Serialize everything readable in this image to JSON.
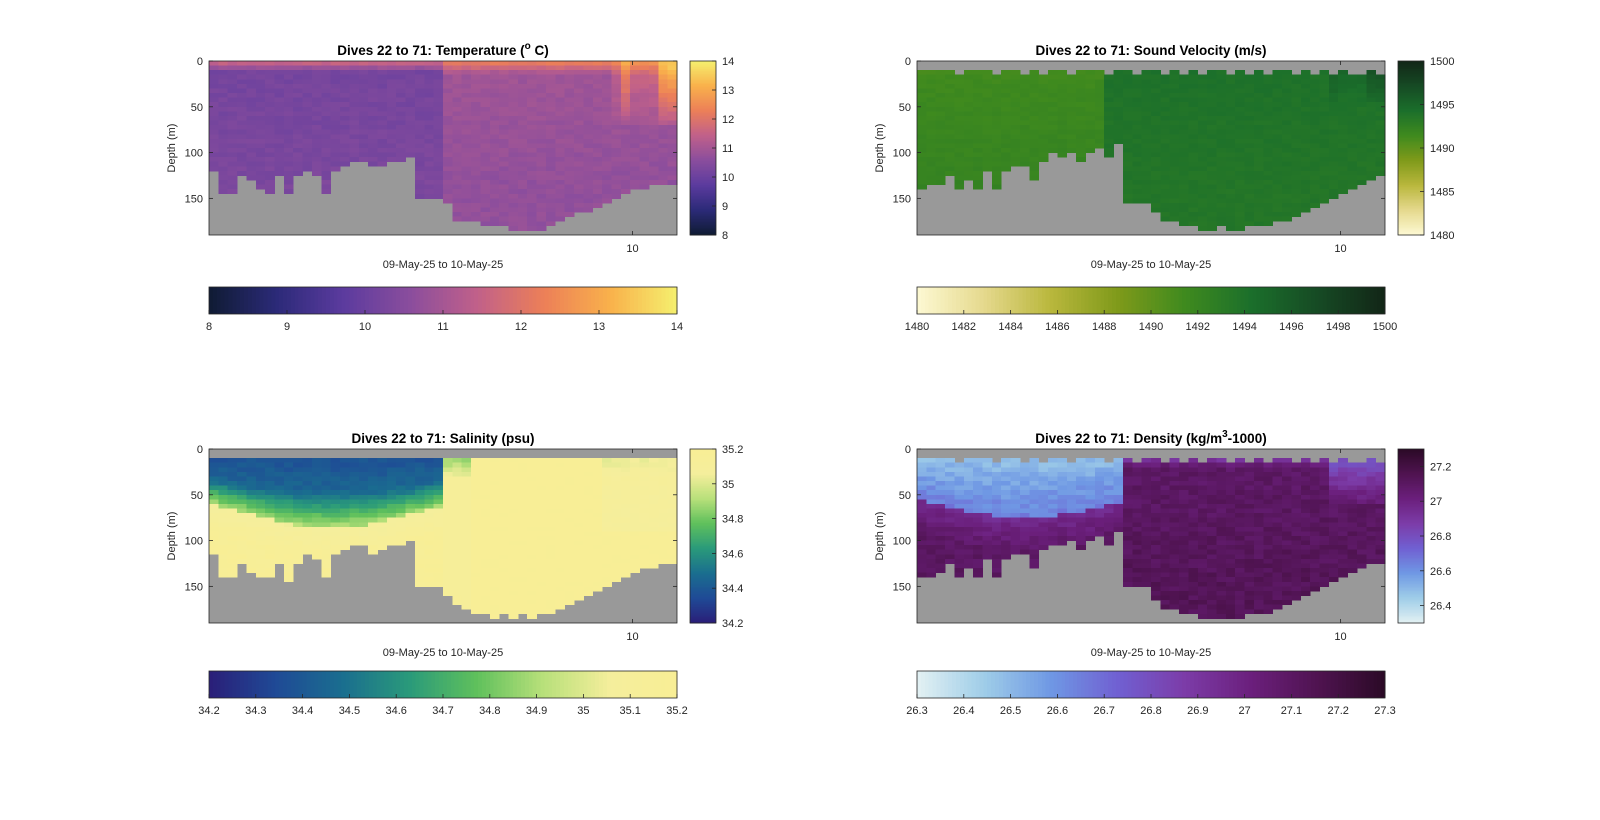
{
  "figure": {
    "panels": [
      {
        "id": "temperature",
        "title_prefix": "Dives 22 to 71: Temperature (",
        "title_sup": "o",
        "title_suffix": " C)",
        "ylabel": "Depth (m)",
        "xlabel": "09-May-25 to 10-May-25"
      },
      {
        "id": "sound-velocity",
        "title_prefix": "Dives 22 to 71: Sound Velocity (m/s)",
        "title_sup": "",
        "title_suffix": "",
        "ylabel": "Depth (m)",
        "xlabel": "09-May-25 to 10-May-25"
      },
      {
        "id": "salinity",
        "title_prefix": "Dives 22 to 71: Salinity (psu)",
        "title_sup": "",
        "title_suffix": "",
        "ylabel": "Depth (m)",
        "xlabel": "09-May-25 to 10-May-25"
      },
      {
        "id": "density",
        "title_prefix": "Dives 22 to 71: Density (kg/m",
        "title_sup": "3",
        "title_suffix": "-1000)",
        "ylabel": "Depth (m)",
        "xlabel": "09-May-25 to 10-May-25"
      }
    ]
  },
  "chart_data": [
    {
      "type": "heatmap",
      "title": "Dives 22 to 71: Temperature (o C)",
      "xlabel": "09-May-25 to 10-May-25",
      "ylabel": "Depth (m)",
      "x_ticks": [
        "10"
      ],
      "x_tick_fraction": 0.905,
      "y_ticks": [
        0,
        50,
        100,
        150
      ],
      "ylim": [
        190,
        0
      ],
      "n_dives": 50,
      "colormap": [
        "#0f1b33",
        "#2b2a78",
        "#5b3b9e",
        "#8a4d9d",
        "#c0608a",
        "#ec7f58",
        "#f9b14b",
        "#f5f06e"
      ],
      "no_data_color": "#999999",
      "colorbar_right": {
        "ticks": [
          8,
          9,
          10,
          11,
          12,
          13,
          14
        ],
        "clim": [
          8,
          14
        ]
      },
      "colorbar_bottom": {
        "ticks": [
          "8",
          "9",
          "10",
          "11",
          "12",
          "13",
          "14"
        ],
        "clim": [
          8,
          14
        ]
      },
      "max_depth": [
        120,
        145,
        145,
        125,
        130,
        140,
        145,
        125,
        145,
        125,
        120,
        125,
        145,
        120,
        115,
        110,
        110,
        115,
        115,
        110,
        110,
        105,
        150,
        150,
        150,
        155,
        175,
        175,
        175,
        180,
        180,
        180,
        185,
        185,
        185,
        185,
        180,
        175,
        170,
        165,
        165,
        160,
        155,
        150,
        145,
        140,
        140,
        135,
        135,
        135
      ],
      "surface_gap": [
        0,
        0,
        0,
        0,
        0,
        0,
        0,
        0,
        0,
        0,
        0,
        0,
        0,
        0,
        0,
        0,
        0,
        0,
        0,
        0,
        0,
        0,
        0,
        0,
        0,
        0,
        0,
        0,
        0,
        0,
        0,
        0,
        0,
        0,
        0,
        0,
        0,
        0,
        0,
        0,
        0,
        0,
        0,
        0,
        0,
        0,
        0,
        0,
        0,
        0
      ],
      "profile": {
        "type": "two_region",
        "split_dive": 25,
        "A": {
          "mixed": 10.2,
          "mld": 12,
          "deep": 10.3,
          "surface": 11.8
        },
        "B": {
          "mixed": 10.9,
          "mld": 15,
          "deep": 10.7,
          "surface": 12.4
        },
        "late": {
          "from_dive": 43,
          "surface": 13.6,
          "mld": 70,
          "mixed": 11.2
        },
        "noise": 0.12
      }
    },
    {
      "type": "heatmap",
      "title": "Dives 22 to 71: Sound Velocity (m/s)",
      "xlabel": "09-May-25 to 10-May-25",
      "ylabel": "Depth (m)",
      "x_ticks": [
        "10"
      ],
      "x_tick_fraction": 0.905,
      "y_ticks": [
        0,
        50,
        100,
        150
      ],
      "ylim": [
        190,
        0
      ],
      "n_dives": 50,
      "colormap": [
        "#fdf9d3",
        "#e5d98d",
        "#b9b73c",
        "#7f9a1a",
        "#3f8a1e",
        "#1b6f2b",
        "#164a24",
        "#122617"
      ],
      "no_data_color": "#999999",
      "colorbar_right": {
        "ticks": [
          1480,
          1485,
          1490,
          1495,
          1500
        ],
        "clim": [
          1480,
          1500
        ]
      },
      "colorbar_bottom": {
        "ticks": [
          "1480",
          "1482",
          "1484",
          "1486",
          "1488",
          "1490",
          "1492",
          "1494",
          "1496",
          "1498",
          "1500"
        ],
        "clim": [
          1480,
          1500
        ]
      },
      "max_depth": [
        140,
        135,
        135,
        125,
        140,
        130,
        140,
        120,
        140,
        120,
        115,
        115,
        130,
        110,
        100,
        105,
        100,
        110,
        100,
        95,
        105,
        90,
        155,
        155,
        155,
        165,
        175,
        175,
        180,
        180,
        185,
        185,
        180,
        185,
        185,
        180,
        180,
        180,
        175,
        175,
        170,
        165,
        160,
        155,
        150,
        145,
        140,
        135,
        130,
        125
      ],
      "surface_gap": [
        10,
        8,
        10,
        8,
        12,
        8,
        10,
        8,
        12,
        10,
        8,
        12,
        8,
        12,
        10,
        8,
        12,
        10,
        8,
        10,
        12,
        10,
        8,
        12,
        10,
        8,
        14,
        10,
        12,
        8,
        14,
        10,
        8,
        12,
        10,
        14,
        8,
        12,
        10,
        8,
        12,
        10,
        14,
        8,
        12,
        10,
        14,
        12,
        10,
        14
      ],
      "profile": {
        "type": "two_region",
        "split_dive": 20,
        "A": {
          "mixed": 1491.5,
          "mld": 20,
          "deep": 1492.2,
          "surface": 1490.8
        },
        "B": {
          "mixed": 1494.0,
          "mld": 18,
          "deep": 1493.6,
          "surface": 1494.4
        },
        "late": {
          "from_dive": 44,
          "surface": 1497.5,
          "mld": 45,
          "mixed": 1494.5
        },
        "noise": 0.25
      }
    },
    {
      "type": "heatmap",
      "title": "Dives 22 to 71: Salinity (psu)",
      "xlabel": "09-May-25 to 10-May-25",
      "ylabel": "Depth (m)",
      "x_ticks": [
        "10"
      ],
      "x_tick_fraction": 0.905,
      "y_ticks": [
        0,
        50,
        100,
        150
      ],
      "ylim": [
        190,
        0
      ],
      "n_dives": 50,
      "colormap": [
        "#2a1e78",
        "#1f4a96",
        "#1a6e8f",
        "#2a9a7a",
        "#5fc05c",
        "#b8e07a",
        "#f5ee9c",
        "#f8ee95"
      ],
      "no_data_color": "#999999",
      "colorbar_right": {
        "ticks": [
          34.2,
          34.4,
          34.6,
          34.8,
          35,
          35.2
        ],
        "clim": [
          34.2,
          35.2
        ]
      },
      "colorbar_bottom": {
        "ticks": [
          "34.2",
          "34.3",
          "34.4",
          "34.5",
          "34.6",
          "34.7",
          "34.8",
          "34.9",
          "35",
          "35.1",
          "35.2"
        ],
        "clim": [
          34.2,
          35.2
        ]
      },
      "max_depth": [
        115,
        140,
        140,
        125,
        135,
        140,
        140,
        125,
        145,
        125,
        115,
        120,
        140,
        115,
        110,
        105,
        105,
        115,
        110,
        105,
        105,
        100,
        150,
        150,
        150,
        160,
        170,
        175,
        180,
        180,
        185,
        180,
        185,
        180,
        185,
        180,
        180,
        175,
        170,
        165,
        160,
        155,
        150,
        145,
        140,
        135,
        130,
        130,
        125,
        125
      ],
      "surface_gap": [
        8,
        10,
        8,
        6,
        10,
        8,
        10,
        6,
        10,
        8,
        6,
        10,
        8,
        10,
        6,
        8,
        10,
        8,
        6,
        10,
        8,
        10,
        6,
        8,
        10,
        8,
        6,
        10,
        8,
        10,
        6,
        8,
        10,
        8,
        6,
        10,
        8,
        10,
        6,
        8,
        10,
        8,
        6,
        10,
        8,
        10,
        6,
        8,
        10,
        8
      ],
      "profile": {
        "type": "salinity",
        "noise": 0.03
      }
    },
    {
      "type": "heatmap",
      "title": "Dives 22 to 71: Density (kg/m3-1000)",
      "xlabel": "09-May-25 to 10-May-25",
      "ylabel": "Depth (m)",
      "x_ticks": [
        "10"
      ],
      "x_tick_fraction": 0.905,
      "y_ticks": [
        0,
        50,
        100,
        150
      ],
      "ylim": [
        190,
        0
      ],
      "n_dives": 50,
      "colormap": [
        "#e3f1f3",
        "#9fcde8",
        "#6f98e4",
        "#7060d2",
        "#7c3ca8",
        "#6b1f7c",
        "#4f1350",
        "#2b0a26"
      ],
      "no_data_color": "#999999",
      "colorbar_right": {
        "ticks": [
          26.4,
          26.6,
          26.8,
          27,
          27.2
        ],
        "clim": [
          26.3,
          27.3
        ]
      },
      "colorbar_bottom": {
        "ticks": [
          "26.3",
          "26.4",
          "26.5",
          "26.6",
          "26.7",
          "26.8",
          "26.9",
          "27",
          "27.1",
          "27.2",
          "27.3"
        ],
        "clim": [
          26.3,
          27.3
        ]
      },
      "max_depth": [
        140,
        140,
        135,
        125,
        140,
        130,
        140,
        120,
        140,
        120,
        115,
        115,
        130,
        110,
        105,
        105,
        100,
        110,
        100,
        95,
        105,
        90,
        150,
        150,
        150,
        165,
        175,
        175,
        180,
        180,
        185,
        185,
        185,
        185,
        185,
        180,
        180,
        180,
        175,
        170,
        165,
        160,
        155,
        150,
        145,
        140,
        135,
        130,
        125,
        125
      ],
      "surface_gap": [
        10,
        8,
        10,
        8,
        12,
        8,
        10,
        8,
        12,
        10,
        8,
        12,
        8,
        12,
        10,
        8,
        12,
        10,
        8,
        10,
        12,
        10,
        8,
        12,
        10,
        8,
        14,
        10,
        12,
        8,
        14,
        10,
        8,
        12,
        10,
        14,
        8,
        12,
        10,
        8,
        12,
        10,
        14,
        8,
        12,
        10,
        14,
        12,
        10,
        14
      ],
      "profile": {
        "type": "density",
        "noise": 0.04
      }
    }
  ]
}
